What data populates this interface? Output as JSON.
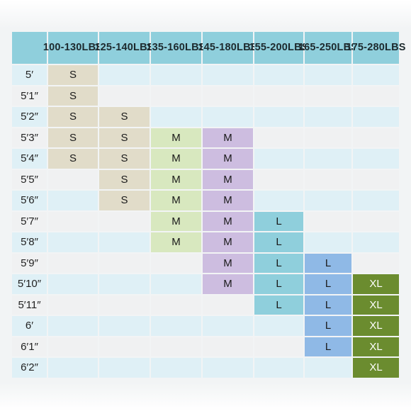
{
  "chart_data": {
    "type": "table",
    "columns": [
      {
        "label": [
          "100-",
          "130LBS"
        ]
      },
      {
        "label": [
          "125-",
          "140LBS"
        ]
      },
      {
        "label": [
          "135-",
          "160LBS"
        ]
      },
      {
        "label": [
          "145-",
          "180LBS"
        ]
      },
      {
        "label": [
          "155-",
          "200LBS"
        ]
      },
      {
        "label": [
          "165-",
          "250LBS"
        ]
      },
      {
        "label": [
          "175-",
          "280LBS"
        ]
      }
    ],
    "rows": [
      {
        "height": "5′",
        "cells": [
          "S",
          "",
          "",
          "",
          "",
          "",
          ""
        ]
      },
      {
        "height": "5′1″",
        "cells": [
          "S",
          "",
          "",
          "",
          "",
          "",
          ""
        ]
      },
      {
        "height": "5′2″",
        "cells": [
          "S",
          "S",
          "",
          "",
          "",
          "",
          ""
        ]
      },
      {
        "height": "5′3″",
        "cells": [
          "S",
          "S",
          "M",
          "M",
          "",
          "",
          ""
        ]
      },
      {
        "height": "5′4″",
        "cells": [
          "S",
          "S",
          "M",
          "M",
          "",
          "",
          ""
        ]
      },
      {
        "height": "5′5″",
        "cells": [
          "",
          "S",
          "M",
          "M",
          "",
          "",
          ""
        ]
      },
      {
        "height": "5′6″",
        "cells": [
          "",
          "S",
          "M",
          "M",
          "",
          "",
          ""
        ]
      },
      {
        "height": "5′7″",
        "cells": [
          "",
          "",
          "M",
          "M",
          "L",
          "",
          ""
        ]
      },
      {
        "height": "5′8″",
        "cells": [
          "",
          "",
          "M",
          "M",
          "L",
          "",
          ""
        ]
      },
      {
        "height": "5′9″",
        "cells": [
          "",
          "",
          "",
          "M",
          "L",
          "L",
          ""
        ]
      },
      {
        "height": "5′10″",
        "cells": [
          "",
          "",
          "",
          "M",
          "L",
          "L",
          "XL"
        ]
      },
      {
        "height": "5′11″",
        "cells": [
          "",
          "",
          "",
          "",
          "L",
          "L",
          "XL"
        ]
      },
      {
        "height": "6′",
        "cells": [
          "",
          "",
          "",
          "",
          "",
          "L",
          "XL"
        ]
      },
      {
        "height": "6′1″",
        "cells": [
          "",
          "",
          "",
          "",
          "",
          "L",
          "XL"
        ]
      },
      {
        "height": "6′2″",
        "cells": [
          "",
          "",
          "",
          "",
          "",
          "",
          "XL"
        ]
      }
    ],
    "size_colors": {
      "S": "#e1dcc9",
      "M": "#d8e8bf",
      "L": "#8fcfdc",
      "XL": "#6b8c2f"
    },
    "colors": {
      "header": "#8fcfdc",
      "row_alt_a": "#dff0f6",
      "row_alt_b": "#f0f1f2",
      "gap": "#ffffff",
      "M_col4": "#cdbde0",
      "L_col6": "#8fb9e6"
    }
  }
}
